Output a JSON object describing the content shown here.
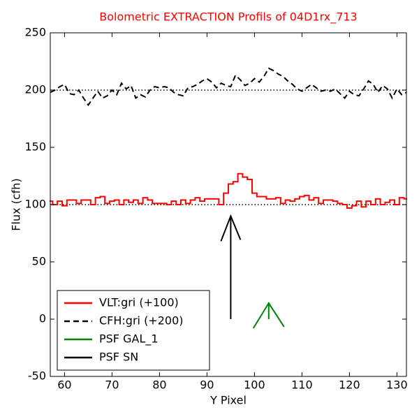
{
  "chart_data": {
    "type": "line",
    "title": "Bolometric EXTRACTION Profils of 04D1rx_713",
    "title_color": "#ff0000",
    "xlabel": "Y Pixel",
    "ylabel": "Flux (cfh)",
    "xlim": [
      57,
      132
    ],
    "ylim": [
      -50,
      250
    ],
    "xticks": [
      60,
      70,
      80,
      90,
      100,
      110,
      120,
      130
    ],
    "yticks": [
      -50,
      0,
      50,
      100,
      150,
      200,
      250
    ],
    "legend": "lower left",
    "hlines": [
      100,
      200
    ],
    "series": [
      {
        "name": "VLT:gri (+100)",
        "color": "#ff0000",
        "style": "steps",
        "x": [
          57,
          58,
          59,
          60,
          61,
          62,
          63,
          64,
          65,
          66,
          67,
          68,
          69,
          70,
          71,
          72,
          73,
          74,
          75,
          76,
          77,
          78,
          79,
          80,
          81,
          82,
          83,
          84,
          85,
          86,
          87,
          88,
          89,
          90,
          91,
          92,
          93,
          94,
          95,
          96,
          97,
          98,
          99,
          100,
          101,
          102,
          103,
          104,
          105,
          106,
          107,
          108,
          109,
          110,
          111,
          112,
          113,
          114,
          115,
          116,
          117,
          118,
          119,
          120,
          121,
          122,
          123,
          124,
          125,
          126,
          127,
          128,
          129,
          130,
          131,
          132
        ],
        "values": [
          103,
          100,
          103,
          99,
          104,
          104,
          101,
          104,
          104,
          100,
          106,
          107,
          101,
          103,
          104,
          100,
          104,
          102,
          104,
          101,
          106,
          104,
          101,
          101,
          101,
          100,
          103,
          100,
          104,
          101,
          104,
          106,
          103,
          105,
          105,
          105,
          100,
          110,
          118,
          120,
          127,
          124,
          122,
          110,
          107,
          107,
          105,
          105,
          106,
          101,
          104,
          103,
          105,
          107,
          108,
          104,
          106,
          101,
          104,
          104,
          103,
          101,
          100,
          97,
          99,
          103,
          98,
          103,
          100,
          105,
          100,
          102,
          104,
          100,
          106,
          105
        ]
      },
      {
        "name": "CFH:gri (+200)",
        "color": "#000000",
        "style": "dashed",
        "x": [
          57,
          58,
          59,
          60,
          61,
          62,
          63,
          64,
          65,
          66,
          67,
          68,
          69,
          70,
          71,
          72,
          73,
          74,
          75,
          76,
          77,
          78,
          79,
          80,
          81,
          82,
          83,
          84,
          85,
          86,
          87,
          88,
          89,
          90,
          91,
          92,
          93,
          94,
          95,
          96,
          97,
          98,
          99,
          100,
          101,
          102,
          103,
          104,
          105,
          106,
          107,
          108,
          109,
          110,
          111,
          112,
          113,
          114,
          115,
          116,
          117,
          118,
          119,
          120,
          121,
          122,
          123,
          124,
          125,
          126,
          127,
          128,
          129,
          130,
          131,
          132
        ],
        "values": [
          198,
          200,
          203,
          205,
          197,
          196,
          200,
          193,
          187,
          193,
          199,
          193,
          195,
          200,
          196,
          206,
          201,
          204,
          193,
          196,
          194,
          200,
          203,
          202,
          203,
          202,
          198,
          196,
          195,
          202,
          203,
          205,
          208,
          210,
          207,
          202,
          206,
          204,
          203,
          213,
          209,
          204,
          206,
          210,
          207,
          212,
          219,
          217,
          214,
          212,
          208,
          205,
          201,
          199,
          202,
          205,
          202,
          199,
          200,
          199,
          201,
          197,
          193,
          199,
          196,
          195,
          201,
          208,
          205,
          198,
          204,
          201,
          193,
          201,
          196,
          198
        ]
      },
      {
        "name": "PSF GAL_1",
        "color": "#008000",
        "style": "arrow",
        "x": [
          103,
          103
        ],
        "values": [
          0,
          14
        ]
      },
      {
        "name": "PSF SN",
        "color": "#000000",
        "style": "arrow",
        "x": [
          95,
          95
        ],
        "values": [
          0,
          90
        ]
      }
    ]
  }
}
